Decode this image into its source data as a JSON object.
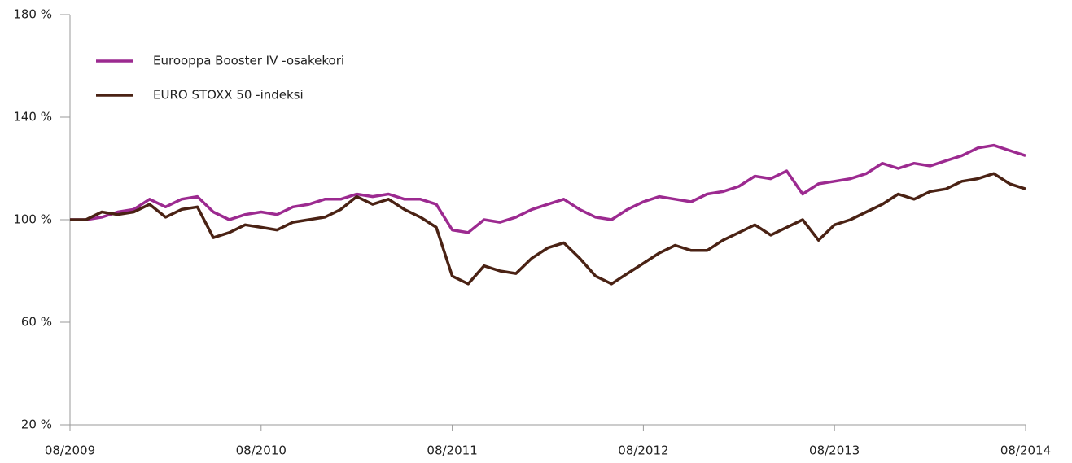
{
  "chart_data": {
    "type": "line",
    "x": [
      "08/2009",
      "09/2009",
      "10/2009",
      "11/2009",
      "12/2009",
      "01/2010",
      "02/2010",
      "03/2010",
      "04/2010",
      "05/2010",
      "06/2010",
      "07/2010",
      "08/2010",
      "09/2010",
      "10/2010",
      "11/2010",
      "12/2010",
      "01/2011",
      "02/2011",
      "03/2011",
      "04/2011",
      "05/2011",
      "06/2011",
      "07/2011",
      "08/2011",
      "09/2011",
      "10/2011",
      "11/2011",
      "12/2011",
      "01/2012",
      "02/2012",
      "03/2012",
      "04/2012",
      "05/2012",
      "06/2012",
      "07/2012",
      "08/2012",
      "09/2012",
      "10/2012",
      "11/2012",
      "12/2012",
      "01/2013",
      "02/2013",
      "03/2013",
      "04/2013",
      "05/2013",
      "06/2013",
      "07/2013",
      "08/2013",
      "09/2013",
      "10/2013",
      "11/2013",
      "12/2013",
      "01/2014",
      "02/2014",
      "03/2014",
      "04/2014",
      "05/2014",
      "06/2014",
      "07/2014",
      "08/2014"
    ],
    "series": [
      {
        "name": "Eurooppa Booster IV -osakekori",
        "color": "#9c2a90",
        "values": [
          100,
          100,
          101,
          103,
          104,
          108,
          105,
          108,
          109,
          103,
          100,
          102,
          103,
          102,
          105,
          106,
          108,
          108,
          110,
          109,
          110,
          108,
          108,
          106,
          96,
          95,
          100,
          99,
          101,
          104,
          106,
          108,
          104,
          101,
          100,
          104,
          107,
          109,
          108,
          107,
          110,
          111,
          113,
          117,
          116,
          119,
          110,
          114,
          115,
          116,
          118,
          122,
          120,
          122,
          121,
          123,
          125,
          128,
          129,
          127,
          125
        ]
      },
      {
        "name": "EURO STOXX 50 -indeksi",
        "color": "#4a2214",
        "values": [
          100,
          100,
          103,
          102,
          103,
          106,
          101,
          104,
          105,
          93,
          95,
          98,
          97,
          96,
          99,
          100,
          101,
          104,
          109,
          106,
          108,
          104,
          101,
          97,
          78,
          75,
          82,
          80,
          79,
          85,
          89,
          91,
          85,
          78,
          75,
          79,
          83,
          87,
          90,
          88,
          88,
          92,
          95,
          98,
          94,
          97,
          100,
          92,
          98,
          100,
          103,
          106,
          110,
          108,
          111,
          112,
          115,
          116,
          118,
          114,
          112
        ]
      }
    ],
    "xlim": [
      "08/2009",
      "08/2014"
    ],
    "xticks": [
      "08/2009",
      "08/2010",
      "08/2011",
      "08/2012",
      "08/2013",
      "08/2014"
    ],
    "ylim": [
      20,
      180
    ],
    "yticks": [
      {
        "value": 20,
        "label": "20 %"
      },
      {
        "value": 60,
        "label": "60 %"
      },
      {
        "value": 100,
        "label": "100 %"
      },
      {
        "value": 140,
        "label": "140 %"
      },
      {
        "value": 180,
        "label": "180 %"
      }
    ],
    "legend": "upper left"
  }
}
